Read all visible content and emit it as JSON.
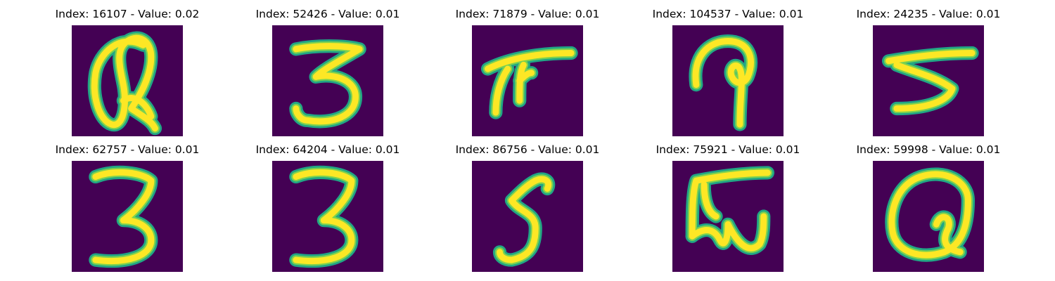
{
  "figure": {
    "background": "#440154",
    "stroke_outer": "#21a685",
    "stroke_mid": "#7ad151",
    "stroke_core": "#fde725"
  },
  "panels": [
    {
      "title": "Index: 16107 - Value: 0.02",
      "glyph": "Q"
    },
    {
      "title": "Index: 52426 - Value: 0.01",
      "glyph": "3"
    },
    {
      "title": "Index: 71879 - Value: 0.01",
      "glyph": "F"
    },
    {
      "title": "Index: 104537 - Value: 0.01",
      "glyph": "P"
    },
    {
      "title": "Index: 24235 - Value: 0.01",
      "glyph": "5"
    },
    {
      "title": "Index: 62757 - Value: 0.01",
      "glyph": "3"
    },
    {
      "title": "Index: 64204 - Value: 0.01",
      "glyph": "3"
    },
    {
      "title": "Index: 86756 - Value: 0.01",
      "glyph": "5"
    },
    {
      "title": "Index: 75921 - Value: 0.01",
      "glyph": "W"
    },
    {
      "title": "Index: 59998 - Value: 0.01",
      "glyph": "Q"
    }
  ]
}
